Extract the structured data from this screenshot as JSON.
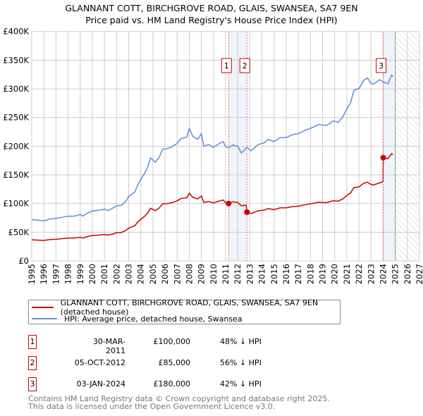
{
  "chart_data": {
    "type": "line",
    "title": "GLANNANT COTT, BIRCHGROVE ROAD, GLAIS, SWANSEA, SA7 9EN",
    "subtitle": "Price paid vs. HM Land Registry's House Price Index (HPI)",
    "xlim": [
      1995,
      2027
    ],
    "ylim": [
      0,
      400000
    ],
    "x_ticks": [
      "1995",
      "1996",
      "1997",
      "1998",
      "1999",
      "2000",
      "2001",
      "2002",
      "2003",
      "2004",
      "2005",
      "2006",
      "2007",
      "2008",
      "2009",
      "2010",
      "2011",
      "2012",
      "2013",
      "2014",
      "2015",
      "2016",
      "2017",
      "2018",
      "2019",
      "2020",
      "2021",
      "2022",
      "2023",
      "2024",
      "2025",
      "2026",
      "2027"
    ],
    "y_ticks": [
      {
        "v": 0,
        "label": "£0"
      },
      {
        "v": 50000,
        "label": "£50K"
      },
      {
        "v": 100000,
        "label": "£100K"
      },
      {
        "v": 150000,
        "label": "£150K"
      },
      {
        "v": 200000,
        "label": "£200K"
      },
      {
        "v": 250000,
        "label": "£250K"
      },
      {
        "v": 300000,
        "label": "£300K"
      },
      {
        "v": 350000,
        "label": "£350K"
      },
      {
        "v": 400000,
        "label": "£400K"
      }
    ],
    "grid": true,
    "forecast_hatch_from": 2025,
    "series": [
      {
        "name": "GLANNANT COTT, BIRCHGROVE ROAD, GLAIS, SWANSEA, SA7 9EN (detached house)",
        "color": "#cc0000",
        "points": [
          [
            1995,
            36.7
          ],
          [
            1995.5,
            36.2
          ],
          [
            1996,
            35.7
          ],
          [
            1996.5,
            37.2
          ],
          [
            1997,
            37.7
          ],
          [
            1997.5,
            38.8
          ],
          [
            1998,
            39.8
          ],
          [
            1998.5,
            39.8
          ],
          [
            1999,
            41.3
          ],
          [
            1999.2,
            39.8
          ],
          [
            1999.6,
            42.3
          ],
          [
            2000,
            44.4
          ],
          [
            2000.5,
            44.9
          ],
          [
            2001,
            45.9
          ],
          [
            2001.3,
            44.9
          ],
          [
            2001.7,
            46.9
          ],
          [
            2002,
            49
          ],
          [
            2002.4,
            49.5
          ],
          [
            2002.8,
            53.6
          ],
          [
            2003,
            57.1
          ],
          [
            2003.5,
            61.2
          ],
          [
            2003.8,
            68.9
          ],
          [
            2004,
            72.4
          ],
          [
            2004.3,
            77.5
          ],
          [
            2004.6,
            84.2
          ],
          [
            2004.8,
            91.8
          ],
          [
            2005,
            89.8
          ],
          [
            2005.2,
            87.7
          ],
          [
            2005.5,
            91.8
          ],
          [
            2005.8,
            99.5
          ],
          [
            2006,
            99.5
          ],
          [
            2006.5,
            101
          ],
          [
            2007,
            104.6
          ],
          [
            2007.3,
            108.6
          ],
          [
            2007.8,
            110.2
          ],
          [
            2008,
            117.8
          ],
          [
            2008.3,
            110.7
          ],
          [
            2008.7,
            108.1
          ],
          [
            2009,
            113.2
          ],
          [
            2009.2,
            102
          ],
          [
            2009.6,
            103.5
          ],
          [
            2010,
            101
          ],
          [
            2010.5,
            104.6
          ],
          [
            2010.8,
            106.1
          ],
          [
            2011,
            101.5
          ],
          [
            2011.25,
            100
          ],
          [
            2011.6,
            103
          ],
          [
            2012,
            102
          ],
          [
            2012.3,
            96
          ],
          [
            2012.7,
            97
          ],
          [
            2012.76,
            85
          ],
          [
            2013.1,
            82.6
          ],
          [
            2013.7,
            87.3
          ],
          [
            2014.2,
            88.6
          ],
          [
            2014.5,
            91.2
          ],
          [
            2015,
            89.4
          ],
          [
            2015.5,
            92.5
          ],
          [
            2016,
            92.5
          ],
          [
            2016.5,
            94.6
          ],
          [
            2017,
            95.5
          ],
          [
            2017.6,
            98
          ],
          [
            2018.2,
            100.2
          ],
          [
            2018.7,
            102.3
          ],
          [
            2019.3,
            101.5
          ],
          [
            2019.9,
            104.9
          ],
          [
            2020.3,
            104.1
          ],
          [
            2020.7,
            108.4
          ],
          [
            2021,
            114
          ],
          [
            2021.3,
            118.3
          ],
          [
            2021.6,
            128.1
          ],
          [
            2022,
            129
          ],
          [
            2022.4,
            135.5
          ],
          [
            2022.7,
            137.2
          ],
          [
            2023,
            133.3
          ],
          [
            2023.2,
            132.4
          ],
          [
            2023.7,
            135.9
          ],
          [
            2023.99,
            138
          ],
          [
            2024.01,
            180
          ],
          [
            2024.4,
            178.3
          ],
          [
            2024.7,
            187
          ],
          [
            2024.8,
            185.2
          ]
        ]
      },
      {
        "name": "HPI: Average price, detached house, Swansea",
        "color": "#5b8fd4",
        "points": [
          [
            1995,
            72
          ],
          [
            1995.5,
            71
          ],
          [
            1996,
            70
          ],
          [
            1996.5,
            73
          ],
          [
            1997,
            74
          ],
          [
            1997.5,
            76
          ],
          [
            1998,
            78
          ],
          [
            1998.5,
            78
          ],
          [
            1999,
            81
          ],
          [
            1999.2,
            78
          ],
          [
            1999.6,
            83
          ],
          [
            2000,
            87
          ],
          [
            2000.5,
            88
          ],
          [
            2001,
            90
          ],
          [
            2001.3,
            88
          ],
          [
            2001.7,
            92
          ],
          [
            2002,
            96
          ],
          [
            2002.4,
            97
          ],
          [
            2002.8,
            105
          ],
          [
            2003,
            112
          ],
          [
            2003.5,
            120
          ],
          [
            2003.8,
            135
          ],
          [
            2004,
            142
          ],
          [
            2004.3,
            152
          ],
          [
            2004.6,
            165
          ],
          [
            2004.8,
            180
          ],
          [
            2005,
            176
          ],
          [
            2005.2,
            172
          ],
          [
            2005.5,
            180
          ],
          [
            2005.8,
            195
          ],
          [
            2006,
            195
          ],
          [
            2006.5,
            198
          ],
          [
            2007,
            205
          ],
          [
            2007.3,
            213
          ],
          [
            2007.8,
            216
          ],
          [
            2008,
            231
          ],
          [
            2008.3,
            217
          ],
          [
            2008.7,
            212
          ],
          [
            2009,
            222
          ],
          [
            2009.2,
            200
          ],
          [
            2009.6,
            203
          ],
          [
            2010,
            198
          ],
          [
            2010.5,
            205
          ],
          [
            2010.8,
            208
          ],
          [
            2011,
            199
          ],
          [
            2011.25,
            197
          ],
          [
            2011.6,
            202
          ],
          [
            2012,
            200
          ],
          [
            2012.3,
            188
          ],
          [
            2012.76,
            198
          ],
          [
            2013.1,
            192
          ],
          [
            2013.7,
            203
          ],
          [
            2014.2,
            206
          ],
          [
            2014.5,
            212
          ],
          [
            2015,
            208
          ],
          [
            2015.5,
            215
          ],
          [
            2016,
            215
          ],
          [
            2016.5,
            220
          ],
          [
            2017,
            222
          ],
          [
            2017.6,
            228
          ],
          [
            2018.2,
            233
          ],
          [
            2018.7,
            238
          ],
          [
            2019.3,
            236
          ],
          [
            2019.9,
            244
          ],
          [
            2020.3,
            242
          ],
          [
            2020.7,
            252
          ],
          [
            2021,
            265
          ],
          [
            2021.3,
            275
          ],
          [
            2021.6,
            298
          ],
          [
            2022,
            300
          ],
          [
            2022.4,
            315
          ],
          [
            2022.7,
            319
          ],
          [
            2023,
            310
          ],
          [
            2023.2,
            308
          ],
          [
            2023.7,
            316
          ],
          [
            2024,
            312
          ],
          [
            2024.4,
            309
          ],
          [
            2024.7,
            324
          ],
          [
            2024.8,
            321
          ]
        ]
      }
    ],
    "value_unit": "thousands GBP",
    "sales": [
      {
        "label": "1",
        "x": 2011.25,
        "value": 100,
        "date": "30-MAR-2011",
        "price": "£100,000",
        "pct": "48% ↓ HPI"
      },
      {
        "label": "2",
        "x": 2012.76,
        "value": 85,
        "date": "05-OCT-2012",
        "price": "£85,000",
        "pct": "56% ↓ HPI"
      },
      {
        "label": "3",
        "x": 2024.01,
        "value": 180,
        "date": "03-JAN-2024",
        "price": "£180,000",
        "pct": "42% ↓ HPI"
      }
    ],
    "shaded_ranges": [
      [
        2011.25,
        2012.76
      ],
      [
        2024.01,
        2025
      ]
    ]
  },
  "footer": {
    "line1": "Contains HM Land Registry data © Crown copyright and database right 2025.",
    "line2": "This data is licensed under the Open Government Licence v3.0."
  }
}
